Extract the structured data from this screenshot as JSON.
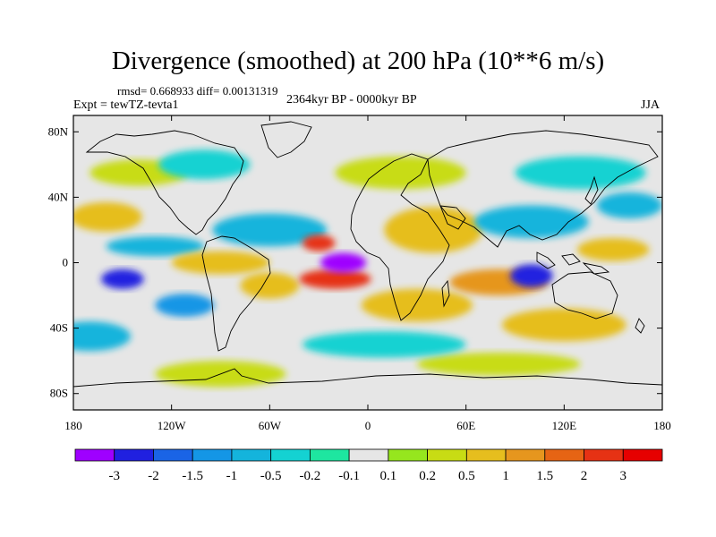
{
  "title": "Divergence (smoothed) at 200 hPa (10**6 m/s)",
  "stats": "rmsd= 0.668933 diff= 0.00131319",
  "experiment": "Expt = tewTZ-tevta1",
  "period": "2364kyr BP - 0000kyr BP",
  "season": "JJA",
  "map": {
    "lat_range": [
      -90,
      90
    ],
    "lon_range": [
      -180,
      180
    ],
    "lat_ticks": [
      {
        "value": 80,
        "label": "80N"
      },
      {
        "value": 40,
        "label": "40N"
      },
      {
        "value": 0,
        "label": "0"
      },
      {
        "value": -40,
        "label": "40S"
      },
      {
        "value": -80,
        "label": "80S"
      }
    ],
    "lon_ticks": [
      {
        "value": -180,
        "label": "180"
      },
      {
        "value": -120,
        "label": "120W"
      },
      {
        "value": -60,
        "label": "60W"
      },
      {
        "value": 0,
        "label": "0"
      },
      {
        "value": 60,
        "label": "60E"
      },
      {
        "value": 120,
        "label": "120E"
      },
      {
        "value": 180,
        "label": "180"
      }
    ],
    "blobs": [
      {
        "lon": -15,
        "lat": 0,
        "rx": 14,
        "ry": 6,
        "value": -3.5
      },
      {
        "lon": -150,
        "lat": -10,
        "rx": 13,
        "ry": 6,
        "value": -2.2
      },
      {
        "lon": 100,
        "lat": -8,
        "rx": 13,
        "ry": 7,
        "value": -2.2
      },
      {
        "lon": -112,
        "lat": -26,
        "rx": 18,
        "ry": 7,
        "value": -1.2
      },
      {
        "lon": -20,
        "lat": -10,
        "rx": 22,
        "ry": 6,
        "value": 2.3
      },
      {
        "lon": 80,
        "lat": -12,
        "rx": 30,
        "ry": 8,
        "value": 1.2
      },
      {
        "lon": 30,
        "lat": -26,
        "rx": 34,
        "ry": 10,
        "value": 0.6
      },
      {
        "lon": 120,
        "lat": -38,
        "rx": 38,
        "ry": 10,
        "value": 0.7
      },
      {
        "lon": -90,
        "lat": 0,
        "rx": 30,
        "ry": 7,
        "value": 0.8
      },
      {
        "lon": -60,
        "lat": -14,
        "rx": 18,
        "ry": 8,
        "value": 0.6
      },
      {
        "lon": -160,
        "lat": 28,
        "rx": 22,
        "ry": 9,
        "value": 0.6
      },
      {
        "lon": -30,
        "lat": 12,
        "rx": 10,
        "ry": 5,
        "value": 2.0
      },
      {
        "lon": 40,
        "lat": 20,
        "rx": 30,
        "ry": 14,
        "value": 0.6
      },
      {
        "lon": 150,
        "lat": 8,
        "rx": 22,
        "ry": 7,
        "value": 0.7
      },
      {
        "lon": 20,
        "lat": 55,
        "rx": 40,
        "ry": 10,
        "value": 0.3
      },
      {
        "lon": -140,
        "lat": 55,
        "rx": 30,
        "ry": 8,
        "value": 0.3
      },
      {
        "lon": -90,
        "lat": -68,
        "rx": 40,
        "ry": 8,
        "value": 0.3
      },
      {
        "lon": 80,
        "lat": -62,
        "rx": 50,
        "ry": 7,
        "value": 0.3
      },
      {
        "lon": -60,
        "lat": 20,
        "rx": 35,
        "ry": 10,
        "value": -0.6
      },
      {
        "lon": 100,
        "lat": 25,
        "rx": 35,
        "ry": 10,
        "value": -0.6
      },
      {
        "lon": -130,
        "lat": 10,
        "rx": 30,
        "ry": 6,
        "value": -0.7
      },
      {
        "lon": 10,
        "lat": -50,
        "rx": 50,
        "ry": 8,
        "value": -0.3
      },
      {
        "lon": -170,
        "lat": -45,
        "rx": 25,
        "ry": 9,
        "value": -0.6
      },
      {
        "lon": -100,
        "lat": 60,
        "rx": 28,
        "ry": 9,
        "value": -0.4
      },
      {
        "lon": 130,
        "lat": 55,
        "rx": 40,
        "ry": 10,
        "value": -0.5
      },
      {
        "lon": 160,
        "lat": 35,
        "rx": 20,
        "ry": 8,
        "value": -0.9
      }
    ]
  },
  "colorbar": {
    "levels": [
      "-3",
      "-2",
      "-1.5",
      "-1",
      "-0.5",
      "-0.2",
      "-0.1",
      "0.1",
      "0.2",
      "0.5",
      "1",
      "1.5",
      "2",
      "3"
    ],
    "level_values": [
      -3,
      -2,
      -1.5,
      -1,
      -0.5,
      -0.2,
      -0.1,
      0.1,
      0.2,
      0.5,
      1,
      1.5,
      2,
      3
    ],
    "colors": [
      "#9f00ff",
      "#2020e0",
      "#1a64e6",
      "#1496e6",
      "#14b4dc",
      "#14d2d2",
      "#1ee6a0",
      "#e6e6e6",
      "#96e61e",
      "#c8dc14",
      "#e6be1e",
      "#e6961e",
      "#e66414",
      "#e63214",
      "#e60000"
    ]
  }
}
